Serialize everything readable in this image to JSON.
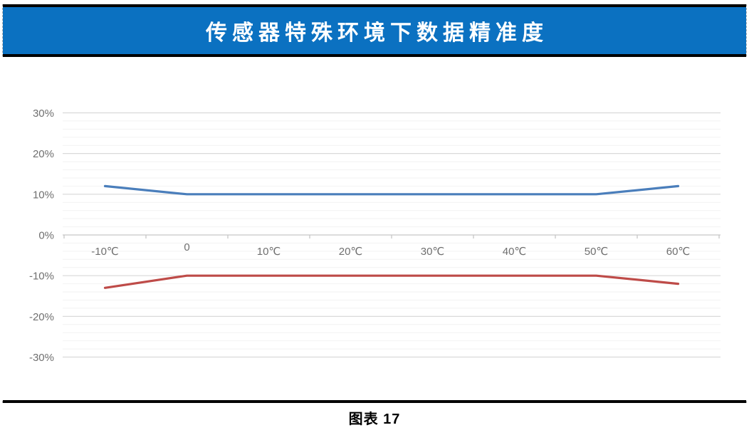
{
  "title": "传感器特殊环境下数据精准度",
  "caption": "图表 17",
  "colors": {
    "title_bar_bg": "#0B71C1",
    "title_text": "#FFFFFF",
    "border_line": "#000000",
    "major_gridline": "#D9D9D9",
    "minor_gridline": "#F2F2F2",
    "axis_line": "#C6C6C6",
    "tick_text": "#6F6F6F",
    "series_upper": "#4A7EBB",
    "series_lower": "#BE4B48"
  },
  "chart_data": {
    "type": "line",
    "title": "传感器特殊环境下数据精准度",
    "categories": [
      "-10℃",
      "0",
      "10℃",
      "20℃",
      "30℃",
      "40℃",
      "50℃",
      "60℃"
    ],
    "series": [
      {
        "id": "upper-accuracy",
        "color": "#4A7EBB",
        "values": [
          12,
          10,
          10,
          10,
          10,
          10,
          10,
          12
        ]
      },
      {
        "id": "lower-accuracy",
        "color": "#BE4B48",
        "values": [
          -13,
          -10,
          -10,
          -10,
          -10,
          -10,
          -10,
          -12
        ]
      }
    ],
    "y_tick_labels": [
      "30%",
      "20%",
      "10%",
      "0%",
      "-10%",
      "-20%",
      "-30%"
    ],
    "ylim": [
      -30,
      30
    ],
    "y_major_step": 10,
    "y_minor_step": 2,
    "grid": true,
    "legend": "none"
  }
}
